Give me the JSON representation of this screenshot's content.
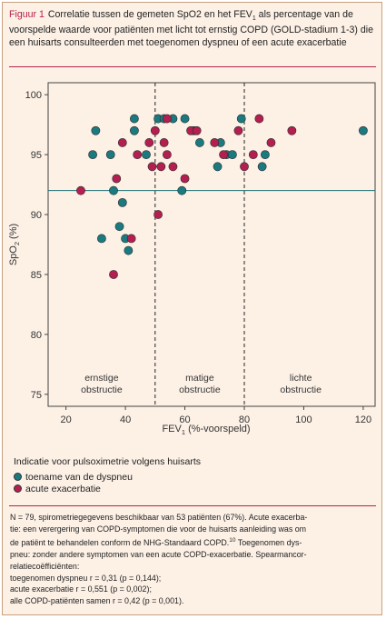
{
  "caption": {
    "label": "Figuur 1",
    "text_a": "Correlatie tussen de gemeten SpO2 en het FEV",
    "text_sub": "1",
    "text_b": " als percentage van de voorspelde waarde voor patiënten met licht tot ernstig COPD (GOLD-stadium 1-3) die een huisarts consulteerden met toegenomen dyspneu of een acute exacerbatie"
  },
  "colors": {
    "teal": "#1a7a80",
    "crimson": "#b41f4f",
    "rule": "#b3214b",
    "background": "#fdf1e6"
  },
  "chart_data": {
    "type": "scatter",
    "xlabel": "FEV",
    "xlabel_sub": "1",
    "xlabel_suffix": " (%-voorspeld)",
    "ylabel": "SpO",
    "ylabel_sub": "2",
    "ylabel_suffix": " (%)",
    "xlim": [
      14,
      124
    ],
    "ylim": [
      74,
      101
    ],
    "xticks": [
      "20",
      "40",
      "60",
      "80",
      "100",
      "120"
    ],
    "yticks": [
      "75",
      "80",
      "85",
      "90",
      "95",
      "100"
    ],
    "vlines": [
      50,
      80
    ],
    "hline": 92,
    "regions": [
      {
        "line1": "ernstige",
        "line2": "obstructie",
        "x": 32
      },
      {
        "line1": "matige",
        "line2": "obstructie",
        "x": 65
      },
      {
        "line1": "lichte",
        "line2": "obstructie",
        "x": 99
      }
    ],
    "series": [
      {
        "name": "toename van de dyspneu",
        "color": "#1a7a80",
        "points": [
          [
            30,
            97
          ],
          [
            29,
            95
          ],
          [
            32,
            88
          ],
          [
            35,
            95
          ],
          [
            36,
            92
          ],
          [
            38,
            89
          ],
          [
            39,
            91
          ],
          [
            40,
            88
          ],
          [
            41,
            87
          ],
          [
            43,
            97
          ],
          [
            43,
            98
          ],
          [
            47,
            95
          ],
          [
            51,
            98
          ],
          [
            53,
            98
          ],
          [
            56,
            98
          ],
          [
            59,
            92
          ],
          [
            60,
            98
          ],
          [
            63,
            97
          ],
          [
            65,
            96
          ],
          [
            71,
            94
          ],
          [
            72,
            96
          ],
          [
            74,
            95
          ],
          [
            76,
            95
          ],
          [
            79,
            98
          ],
          [
            86,
            94
          ],
          [
            87,
            95
          ],
          [
            120,
            97
          ]
        ]
      },
      {
        "name": "acute exacerbatie",
        "color": "#b41f4f",
        "points": [
          [
            25,
            92
          ],
          [
            36,
            85
          ],
          [
            37,
            93
          ],
          [
            39,
            96
          ],
          [
            42,
            88
          ],
          [
            44,
            95
          ],
          [
            48,
            96
          ],
          [
            49,
            94
          ],
          [
            50,
            97
          ],
          [
            51,
            90
          ],
          [
            52,
            94
          ],
          [
            53,
            96
          ],
          [
            54,
            95
          ],
          [
            54,
            98
          ],
          [
            56,
            94
          ],
          [
            60,
            93
          ],
          [
            62,
            97
          ],
          [
            64,
            97
          ],
          [
            70,
            96
          ],
          [
            73,
            95
          ],
          [
            78,
            97
          ],
          [
            80,
            94
          ],
          [
            83,
            95
          ],
          [
            85,
            98
          ],
          [
            89,
            96
          ],
          [
            96,
            97
          ]
        ]
      }
    ]
  },
  "legend": {
    "title": "Indicatie voor pulsoximetrie volgens huisarts",
    "items": [
      "toename van de dyspneu",
      "acute exacerbatie"
    ]
  },
  "footnote": {
    "l1": "N = 79, spirometriegegevens beschikbaar van 53 patiënten (67%). Acute exacerba-",
    "l2": "tie: een verergering van COPD-symptomen die voor de huisarts aanleiding was om",
    "l3a": "de patiënt te behandelen conform de NHG-Standaard COPD.",
    "l3_ref": "10",
    "l3b": " Toegenomen dys-",
    "l4": "pneu: zonder andere symptomen van een acute COPD-exacerbatie. Spearmancor-",
    "l5": "relatiecoëfficiënten:",
    "l6": "toegenomen dyspneu r = 0,31 (p = 0,144);",
    "l7": "acute exacerbatie r = 0,551 (p = 0,002);",
    "l8": "alle COPD-patiënten samen r = 0,42 (p = 0,001)."
  }
}
